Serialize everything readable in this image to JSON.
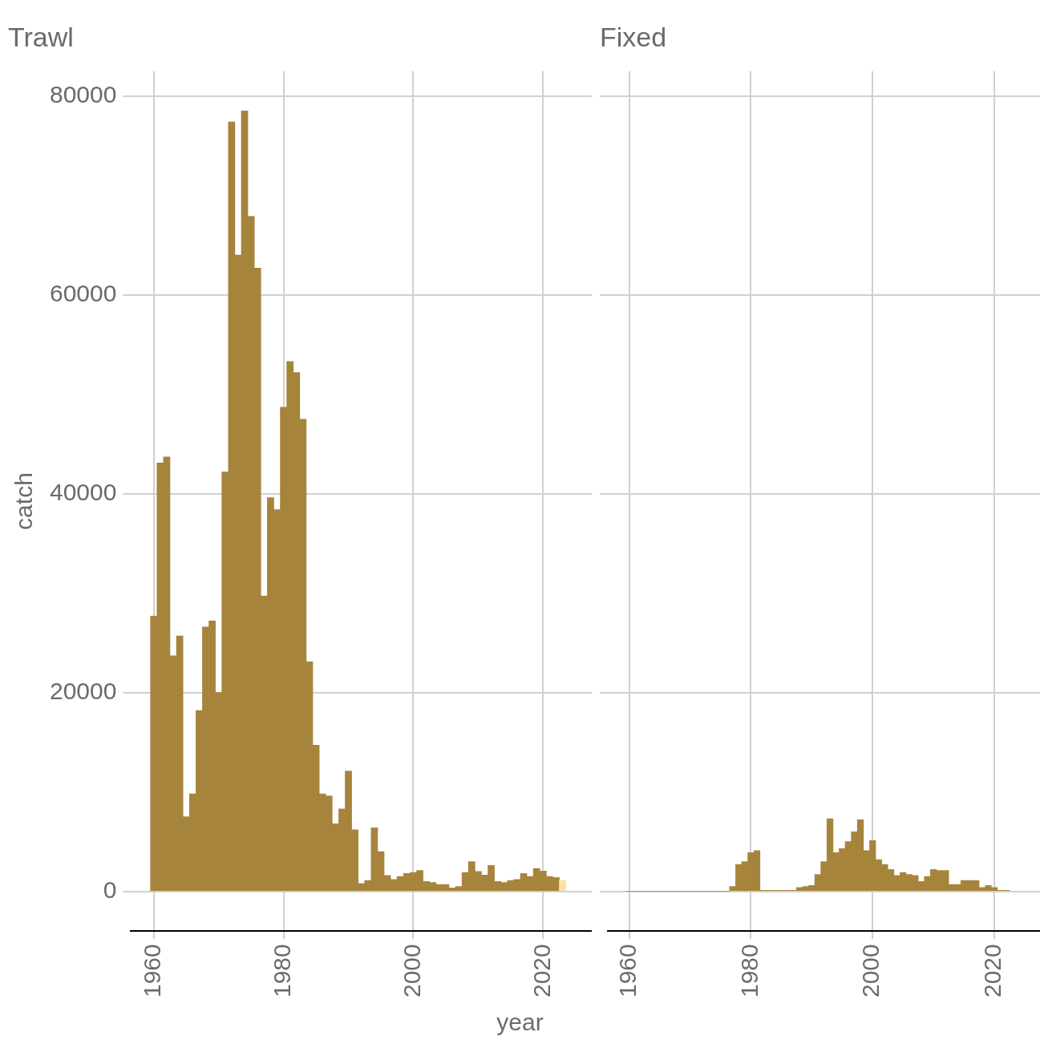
{
  "chart_data": [
    {
      "type": "bar",
      "title": "Trawl",
      "ylabel": "catch",
      "xlabel": "year",
      "grid": true,
      "x": [
        1960,
        1961,
        1962,
        1963,
        1964,
        1965,
        1966,
        1967,
        1968,
        1969,
        1970,
        1971,
        1972,
        1973,
        1974,
        1975,
        1976,
        1977,
        1978,
        1979,
        1980,
        1981,
        1982,
        1983,
        1984,
        1985,
        1986,
        1987,
        1988,
        1989,
        1990,
        1991,
        1992,
        1993,
        1994,
        1995,
        1996,
        1997,
        1998,
        1999,
        2000,
        2001,
        2002,
        2003,
        2004,
        2005,
        2006,
        2007,
        2008,
        2009,
        2010,
        2011,
        2012,
        2013,
        2014,
        2015,
        2016,
        2017,
        2018,
        2019,
        2020,
        2021,
        2022,
        2023
      ],
      "values": [
        27700,
        43100,
        43700,
        23700,
        25700,
        7500,
        9800,
        18200,
        26600,
        27200,
        20000,
        42200,
        77400,
        64000,
        78500,
        67900,
        62700,
        29700,
        39600,
        38400,
        48700,
        53300,
        52200,
        47500,
        23100,
        14700,
        9800,
        9600,
        6800,
        8300,
        12100,
        6200,
        800,
        1100,
        6400,
        4000,
        1600,
        1200,
        1500,
        1800,
        1900,
        2100,
        1000,
        900,
        700,
        700,
        350,
        500,
        1900,
        3000,
        2000,
        1650,
        2600,
        1000,
        900,
        1100,
        1200,
        1800,
        1500,
        2300,
        2050,
        1500,
        1400,
        1100
      ],
      "colors": [
        "#a6843c",
        "#a6843c",
        "#a6843c",
        "#a6843c",
        "#a6843c",
        "#a6843c",
        "#a6843c",
        "#a6843c",
        "#a6843c",
        "#a6843c",
        "#a6843c",
        "#a6843c",
        "#a6843c",
        "#a6843c",
        "#a6843c",
        "#a6843c",
        "#a6843c",
        "#a6843c",
        "#a6843c",
        "#a6843c",
        "#a6843c",
        "#a6843c",
        "#a6843c",
        "#a6843c",
        "#a6843c",
        "#a6843c",
        "#a6843c",
        "#a6843c",
        "#a6843c",
        "#a6843c",
        "#a6843c",
        "#a6843c",
        "#a6843c",
        "#a6843c",
        "#a6843c",
        "#a6843c",
        "#a6843c",
        "#a6843c",
        "#a6843c",
        "#a6843c",
        "#a6843c",
        "#a6843c",
        "#a6843c",
        "#a6843c",
        "#a6843c",
        "#a6843c",
        "#a6843c",
        "#a6843c",
        "#a6843c",
        "#a6843c",
        "#a6843c",
        "#a6843c",
        "#a6843c",
        "#a6843c",
        "#a6843c",
        "#a6843c",
        "#a6843c",
        "#a6843c",
        "#a6843c",
        "#a6843c",
        "#a6843c",
        "#a6843c",
        "#a6843c",
        "#fde3a0"
      ],
      "xlim": [
        1956.5,
        2027.5
      ],
      "xticks": [
        1960,
        1980,
        2000,
        2020
      ],
      "ylim": [
        -4000,
        82500
      ],
      "yticks": [
        0,
        20000,
        40000,
        60000,
        80000
      ]
    },
    {
      "type": "bar",
      "title": "Fixed",
      "grid": true,
      "tick_labels": "x",
      "x": [
        1960,
        1961,
        1962,
        1963,
        1964,
        1965,
        1966,
        1967,
        1968,
        1969,
        1970,
        1971,
        1972,
        1973,
        1974,
        1975,
        1976,
        1977,
        1978,
        1979,
        1980,
        1981,
        1982,
        1983,
        1984,
        1985,
        1986,
        1987,
        1988,
        1989,
        1990,
        1991,
        1992,
        1993,
        1994,
        1995,
        1996,
        1997,
        1998,
        1999,
        2000,
        2001,
        2002,
        2003,
        2004,
        2005,
        2006,
        2007,
        2008,
        2009,
        2010,
        2011,
        2012,
        2013,
        2014,
        2015,
        2016,
        2017,
        2018,
        2019,
        2020,
        2021,
        2022
      ],
      "values": [
        0,
        0,
        0,
        0,
        0,
        0,
        0,
        0,
        0,
        0,
        0,
        0,
        0,
        0,
        0,
        0,
        0,
        500,
        2700,
        3000,
        3900,
        4100,
        100,
        100,
        100,
        100,
        100,
        100,
        400,
        500,
        600,
        1700,
        3000,
        7300,
        3900,
        4300,
        5000,
        6000,
        7200,
        4100,
        5100,
        3200,
        2700,
        2200,
        1600,
        1900,
        1700,
        1600,
        1000,
        1500,
        2200,
        2100,
        2100,
        700,
        700,
        1100,
        1100,
        1100,
        400,
        600,
        400,
        100,
        100
      ],
      "color": "#a6843c",
      "xlim": [
        1956.5,
        2027.5
      ],
      "xticks": [
        1960,
        1980,
        2000,
        2020
      ],
      "ylim": [
        -4000,
        82500
      ],
      "yticks": [
        0,
        20000,
        40000,
        60000,
        80000
      ]
    }
  ]
}
